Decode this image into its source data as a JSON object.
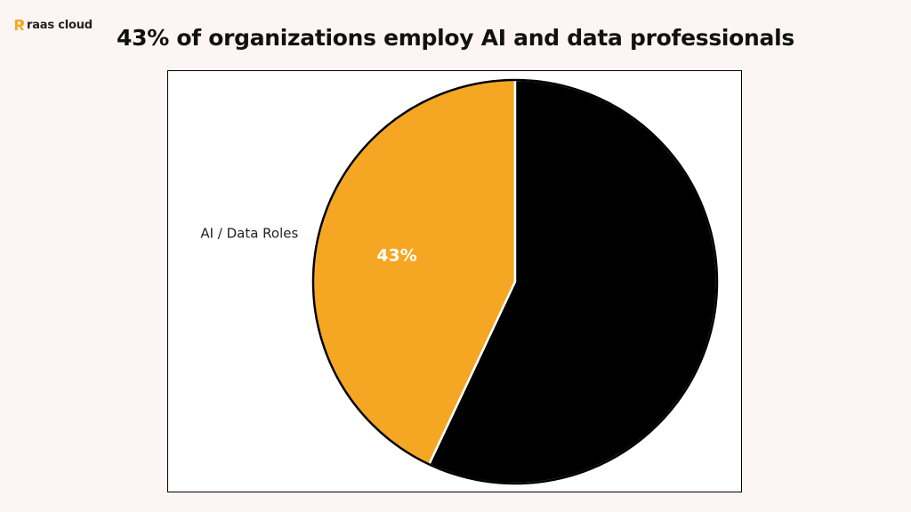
{
  "brand": {
    "logo_text": "raas cloud",
    "accent": "#f5a623"
  },
  "chart_data": {
    "type": "pie",
    "title": "43% of organizations employ AI and data professionals",
    "slices": [
      {
        "label": "AI / Data Roles",
        "value": 43,
        "value_label": "43%",
        "color": "#f5a623"
      },
      {
        "label": "",
        "value": 57,
        "value_label": "",
        "color": "#000000"
      }
    ],
    "start_angle": "top",
    "direction": "counterclockwise",
    "legend": "none"
  }
}
